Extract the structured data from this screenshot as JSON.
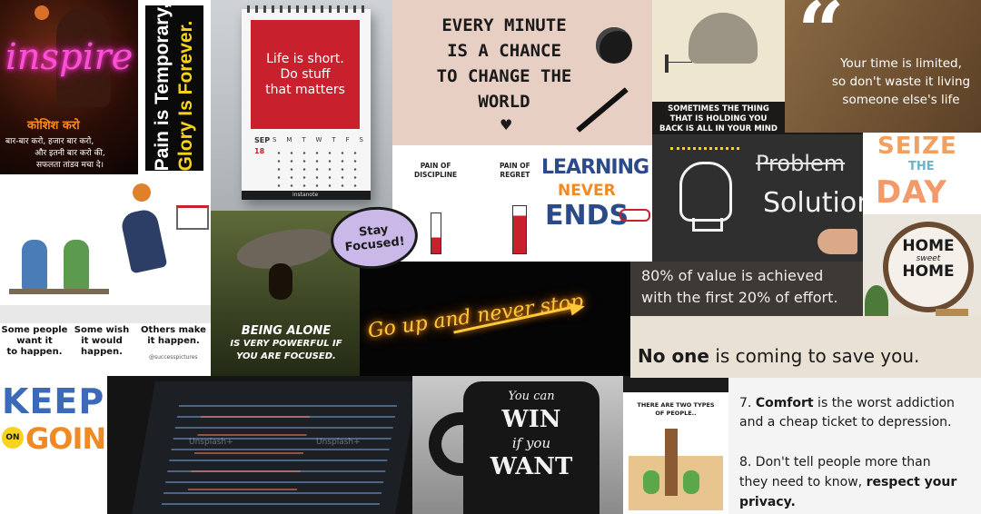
{
  "colors": {
    "neon_pink": "#ff4fd8",
    "red_card": "#c8202c",
    "yellow": "#f7d21e",
    "orange": "#f08a24",
    "blue": "#2a4a8a",
    "cream": "#f3ede2",
    "chalk_bg": "#2f2f2f",
    "neon_yellow": "#ffc93a",
    "beige": "#e9e2d4"
  },
  "tiles": {
    "inspire": {
      "word": "inspire",
      "heading": "कोशिश करो",
      "lines": [
        "बार-बार करो, हजार बार करो,",
        "और इतनी बार करो की,",
        "सफलता तांडव मचा दे।"
      ]
    },
    "pain": {
      "line1": "Pain is Temporary,",
      "line2": "Glory Is Forever."
    },
    "calendar": {
      "card_lines": [
        "Life is short.",
        "Do stuff",
        "that matters"
      ],
      "month": "SEP",
      "day_num": "18",
      "weekdays": [
        "S",
        "M",
        "T",
        "W",
        "T",
        "F",
        "S"
      ],
      "brand": "instanote"
    },
    "every_minute": {
      "lines": [
        "EVERY MINUTE",
        "IS A CHANCE",
        "TO CHANGE THE",
        "WORLD"
      ]
    },
    "elephant": {
      "lines": [
        "SOMETIMES THE THING",
        "THAT IS HOLDING YOU",
        "BACK IS ALL IN YOUR MIND"
      ]
    },
    "your_time": {
      "quote_mark": "“",
      "lines": [
        "Your time is limited,",
        "so don't waste it living",
        "someone else's life"
      ]
    },
    "pain_of": {
      "left": [
        "PAIN OF",
        "DISCIPLINE"
      ],
      "right": [
        "PAIN OF",
        "REGRET"
      ]
    },
    "learning": {
      "line1": "LEARNING",
      "line2": "NEVER",
      "line3": "ENDS"
    },
    "problem": {
      "struck": "Problem",
      "answer": "Solution"
    },
    "seize": {
      "line1": "SEIZE",
      "line2": "THE",
      "line3": "DAY"
    },
    "some_people": {
      "captions": [
        [
          "Some people",
          "want it",
          "to happen."
        ],
        [
          "Some wish",
          "it would",
          "happen."
        ],
        [
          "Others make",
          "it happen."
        ]
      ],
      "credit": "@successpictures"
    },
    "ant": {
      "line1": "BEING ALONE",
      "line2": "IS VERY POWERFUL IF",
      "line3": "YOU ARE FOCUSED."
    },
    "stay_focused": {
      "line1": "Stay",
      "line2": "Focused!"
    },
    "go_up": {
      "text": "Go up and never stop"
    },
    "eighty": {
      "line1": "80% of value is achieved",
      "line2": "with the first 20% of effort."
    },
    "home": {
      "line1": "HOME",
      "line2": "sweet",
      "line3": "HOME"
    },
    "no_one": {
      "bold": "No one",
      "rest": " is coming to save you."
    },
    "keep": {
      "line1": "KEEP",
      "on": "ON",
      "going": "GOING"
    },
    "code": {
      "watermark": "Unsplash+"
    },
    "mug": {
      "lines": [
        "You can",
        "WIN",
        "if you",
        "WANT"
      ]
    },
    "two_types": {
      "lines": [
        "THERE ARE TWO TYPES",
        "OF PEOPLE.."
      ]
    },
    "tips": {
      "item7_prefix": "7. ",
      "item7_bold": "Comfort",
      "item7_rest": " is the worst addiction",
      "item7_line2": "and a cheap ticket to depression.",
      "item8_line1": "8. Don't tell people more than",
      "item8_line2_a": "they need to know, ",
      "item8_line2_bold": "respect your",
      "item8_line3_bold": "privacy."
    }
  }
}
